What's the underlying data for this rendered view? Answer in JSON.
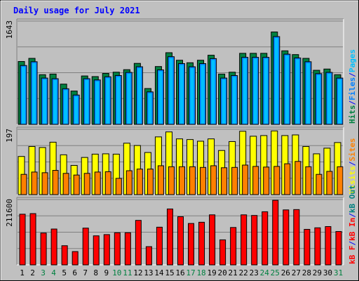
{
  "title": "Daily usage for July 2021",
  "colors": {
    "background": "#c0c0c0",
    "title": "#0000ff",
    "hits": "#008040",
    "files": "#0080ff",
    "pages": "#00c0ff",
    "visits": "#ffff00",
    "sites": "#ff8000",
    "kb_in": "#ff0000",
    "kb_out": "#008080",
    "kb_f": "#ff0000",
    "weekend": "#008040"
  },
  "chart_data": [
    {
      "type": "bar",
      "name": "hits-files-pages",
      "ymax_label": "1643",
      "legend": [
        {
          "text": "Hits",
          "color": "#008040"
        },
        {
          "text": "/",
          "color": "#0000ff"
        },
        {
          "text": "Files",
          "color": "#0080ff"
        },
        {
          "text": "/",
          "color": "#0000ff"
        },
        {
          "text": "Pages",
          "color": "#00c0ff"
        }
      ],
      "ylim": [
        0,
        1643
      ],
      "categories": [
        "1",
        "2",
        "3",
        "4",
        "5",
        "6",
        "7",
        "8",
        "9",
        "10",
        "11",
        "12",
        "13",
        "14",
        "15",
        "16",
        "17",
        "18",
        "19",
        "20",
        "21",
        "22",
        "23",
        "24",
        "25",
        "26",
        "27",
        "28",
        "29",
        "30",
        "31"
      ],
      "series": [
        {
          "name": "Hits",
          "values": [
            1000,
            1050,
            790,
            800,
            640,
            530,
            770,
            760,
            810,
            830,
            870,
            970,
            570,
            920,
            1140,
            1020,
            980,
            1020,
            1100,
            800,
            830,
            1130,
            1130,
            1130,
            1470,
            1170,
            1110,
            1050,
            860,
            880,
            790
          ]
        },
        {
          "name": "Files",
          "values": [
            970,
            1030,
            770,
            760,
            600,
            500,
            760,
            740,
            790,
            810,
            860,
            950,
            550,
            900,
            1110,
            1000,
            950,
            1000,
            1080,
            770,
            810,
            1100,
            1100,
            1100,
            1430,
            1150,
            1090,
            1030,
            840,
            860,
            770
          ]
        }
      ]
    },
    {
      "type": "bar",
      "name": "visits-sites",
      "ymax_label": "197",
      "legend": [
        {
          "text": "Visits",
          "color": "#ffff00"
        },
        {
          "text": "/",
          "color": "#0000ff"
        },
        {
          "text": "Sites",
          "color": "#ff8000"
        }
      ],
      "ylim": [
        0,
        197
      ],
      "categories": [
        "1",
        "2",
        "3",
        "4",
        "5",
        "6",
        "7",
        "8",
        "9",
        "10",
        "11",
        "12",
        "13",
        "14",
        "15",
        "16",
        "17",
        "18",
        "19",
        "20",
        "21",
        "22",
        "23",
        "24",
        "25",
        "26",
        "27",
        "28",
        "29",
        "30",
        "31"
      ],
      "series": [
        {
          "name": "Visits",
          "values": [
            115,
            145,
            142,
            158,
            120,
            88,
            112,
            122,
            123,
            122,
            155,
            148,
            127,
            174,
            189,
            168,
            166,
            161,
            168,
            133,
            160,
            191,
            176,
            178,
            192,
            178,
            180,
            145,
            123,
            140,
            157
          ]
        },
        {
          "name": "Sites",
          "values": [
            61,
            68,
            66,
            73,
            64,
            59,
            64,
            68,
            69,
            49,
            72,
            77,
            77,
            87,
            84,
            84,
            84,
            82,
            87,
            81,
            82,
            89,
            85,
            83,
            85,
            93,
            100,
            84,
            61,
            70,
            84
          ]
        }
      ]
    },
    {
      "type": "bar",
      "name": "kbytes",
      "ymax_label": "211600",
      "legend": [
        {
          "text": "kB F",
          "color": "#ff0000"
        },
        {
          "text": "/",
          "color": "#0000ff"
        },
        {
          "text": "kB In",
          "color": "#ff0000"
        },
        {
          "text": "/",
          "color": "#0000ff"
        },
        {
          "text": "kB Out",
          "color": "#008080"
        }
      ],
      "ylim": [
        0,
        211600
      ],
      "categories": [
        "1",
        "2",
        "3",
        "4",
        "5",
        "6",
        "7",
        "8",
        "9",
        "10",
        "11",
        "12",
        "13",
        "14",
        "15",
        "16",
        "17",
        "18",
        "19",
        "20",
        "21",
        "22",
        "23",
        "24",
        "25",
        "26",
        "27",
        "28",
        "29",
        "30",
        "31"
      ],
      "series": [
        {
          "name": "kB F",
          "values": [
            164000,
            166000,
            103000,
            116000,
            62000,
            43000,
            119000,
            94000,
            98000,
            104000,
            104000,
            144000,
            59000,
            122000,
            181000,
            156000,
            134000,
            138000,
            162000,
            81000,
            121000,
            162000,
            160000,
            172000,
            209000,
            178000,
            179000,
            115000,
            120000,
            124000,
            108000
          ]
        }
      ]
    }
  ],
  "day_labels": [
    {
      "text": "1",
      "weekend": false
    },
    {
      "text": "2",
      "weekend": false
    },
    {
      "text": "3",
      "weekend": true
    },
    {
      "text": "4",
      "weekend": true
    },
    {
      "text": "5",
      "weekend": false
    },
    {
      "text": "6",
      "weekend": false
    },
    {
      "text": "7",
      "weekend": false
    },
    {
      "text": "8",
      "weekend": false
    },
    {
      "text": "9",
      "weekend": false
    },
    {
      "text": "10",
      "weekend": true
    },
    {
      "text": "11",
      "weekend": true
    },
    {
      "text": "12",
      "weekend": false
    },
    {
      "text": "13",
      "weekend": false
    },
    {
      "text": "14",
      "weekend": false
    },
    {
      "text": "15",
      "weekend": false
    },
    {
      "text": "16",
      "weekend": false
    },
    {
      "text": "17",
      "weekend": true
    },
    {
      "text": "18",
      "weekend": true
    },
    {
      "text": "19",
      "weekend": false
    },
    {
      "text": "20",
      "weekend": false
    },
    {
      "text": "21",
      "weekend": false
    },
    {
      "text": "22",
      "weekend": false
    },
    {
      "text": "23",
      "weekend": false
    },
    {
      "text": "24",
      "weekend": true
    },
    {
      "text": "25",
      "weekend": true
    },
    {
      "text": "26",
      "weekend": false
    },
    {
      "text": "27",
      "weekend": false
    },
    {
      "text": "28",
      "weekend": false
    },
    {
      "text": "29",
      "weekend": false
    },
    {
      "text": "30",
      "weekend": false
    },
    {
      "text": "31",
      "weekend": true
    }
  ]
}
